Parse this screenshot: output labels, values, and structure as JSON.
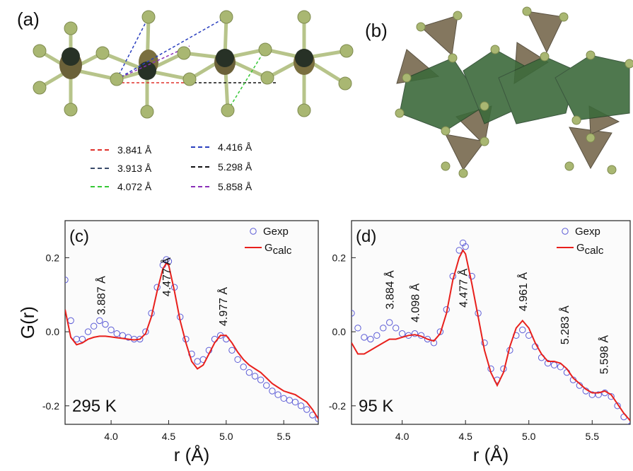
{
  "panels": {
    "a": {
      "label": "(a)",
      "legend": [
        {
          "text": "3.841 Å",
          "color": "#e0302a"
        },
        {
          "text": "3.913 Å",
          "color": "#3a4b6a"
        },
        {
          "text": "4.072 Å",
          "color": "#36c836"
        },
        {
          "text": "4.416 Å",
          "color": "#2a3fbf"
        },
        {
          "text": "5.298 Å",
          "color": "#111111"
        },
        {
          "text": "5.858 Å",
          "color": "#8a2fb8"
        }
      ]
    },
    "b": {
      "label": "(b)"
    }
  },
  "chart_data": [
    {
      "type": "line",
      "panel_label": "(c)",
      "temperature_label": "295 K",
      "xlabel": "r (Å)",
      "ylabel": "G(r)",
      "xlim": [
        3.6,
        5.8
      ],
      "ylim": [
        -0.25,
        0.3
      ],
      "xticks": [
        4.0,
        4.5,
        5.0,
        5.5
      ],
      "xtick_labels": [
        "4.0",
        "4.5",
        "5.0",
        "5.5"
      ],
      "yticks": [
        0.2,
        0.0,
        -0.2
      ],
      "ytick_labels": [
        "0.2",
        "0.0",
        "-0.2"
      ],
      "legend": {
        "exp": "Gexp",
        "calc_main": "G",
        "calc_sub": "calc"
      },
      "peak_labels": [
        {
          "text": "3.887 Å",
          "r": 3.91,
          "g": 0.03
        },
        {
          "text": "4.477 Å",
          "r": 4.48,
          "g": 0.08
        },
        {
          "text": "4.977 Å",
          "r": 4.97,
          "g": 0.0
        }
      ],
      "series": [
        {
          "name": "Gexp",
          "style": "circles",
          "color": "#5b5bd6",
          "x": [
            3.6,
            3.65,
            3.7,
            3.75,
            3.8,
            3.85,
            3.9,
            3.95,
            4.0,
            4.05,
            4.1,
            4.15,
            4.2,
            4.25,
            4.3,
            4.35,
            4.4,
            4.45,
            4.48,
            4.5,
            4.55,
            4.6,
            4.65,
            4.7,
            4.75,
            4.8,
            4.85,
            4.9,
            4.95,
            5.0,
            5.05,
            5.1,
            5.15,
            5.2,
            5.25,
            5.3,
            5.35,
            5.4,
            5.45,
            5.5,
            5.55,
            5.6,
            5.65,
            5.7,
            5.75,
            5.8
          ],
          "y": [
            0.14,
            0.03,
            -0.02,
            -0.02,
            0.0,
            0.015,
            0.03,
            0.02,
            0.005,
            -0.005,
            -0.01,
            -0.015,
            -0.02,
            -0.02,
            0.0,
            0.05,
            0.12,
            0.18,
            0.195,
            0.19,
            0.12,
            0.04,
            -0.02,
            -0.06,
            -0.08,
            -0.075,
            -0.05,
            -0.02,
            -0.01,
            -0.02,
            -0.05,
            -0.075,
            -0.095,
            -0.11,
            -0.12,
            -0.13,
            -0.145,
            -0.16,
            -0.17,
            -0.18,
            -0.185,
            -0.19,
            -0.2,
            -0.21,
            -0.225,
            -0.235
          ]
        },
        {
          "name": "G",
          "name_sub": "calc",
          "style": "line",
          "color": "#e8201c",
          "x": [
            3.6,
            3.65,
            3.7,
            3.75,
            3.8,
            3.85,
            3.9,
            3.95,
            4.0,
            4.05,
            4.1,
            4.15,
            4.2,
            4.25,
            4.3,
            4.35,
            4.4,
            4.45,
            4.48,
            4.5,
            4.55,
            4.6,
            4.65,
            4.7,
            4.75,
            4.8,
            4.85,
            4.9,
            4.95,
            5.0,
            5.05,
            5.1,
            5.15,
            5.2,
            5.25,
            5.3,
            5.35,
            5.4,
            5.45,
            5.5,
            5.55,
            5.6,
            5.65,
            5.7,
            5.75,
            5.8
          ],
          "y": [
            0.06,
            -0.015,
            -0.035,
            -0.03,
            -0.02,
            -0.015,
            -0.012,
            -0.012,
            -0.014,
            -0.016,
            -0.018,
            -0.02,
            -0.022,
            -0.02,
            -0.005,
            0.04,
            0.11,
            0.17,
            0.185,
            0.18,
            0.11,
            0.03,
            -0.03,
            -0.08,
            -0.1,
            -0.09,
            -0.06,
            -0.03,
            -0.01,
            -0.01,
            -0.03,
            -0.055,
            -0.075,
            -0.09,
            -0.1,
            -0.11,
            -0.125,
            -0.14,
            -0.15,
            -0.16,
            -0.165,
            -0.17,
            -0.18,
            -0.19,
            -0.21,
            -0.235
          ]
        }
      ]
    },
    {
      "type": "line",
      "panel_label": "(d)",
      "temperature_label": "95 K",
      "xlabel": "r (Å)",
      "ylabel": "",
      "xlim": [
        3.6,
        5.8
      ],
      "ylim": [
        -0.25,
        0.3
      ],
      "xticks": [
        4.0,
        4.5,
        5.0,
        5.5
      ],
      "xtick_labels": [
        "4.0",
        "4.5",
        "5.0",
        "5.5"
      ],
      "yticks": [
        0.2,
        0.0,
        -0.2
      ],
      "ytick_labels": [
        "0.2",
        "0.0",
        "-0.2"
      ],
      "legend": {
        "exp": "Gexp",
        "calc_main": "G",
        "calc_sub": "calc"
      },
      "peak_labels": [
        {
          "text": "3.884 Å",
          "r": 3.9,
          "g": 0.045
        },
        {
          "text": "4.098 Å",
          "r": 4.1,
          "g": 0.01
        },
        {
          "text": "4.477 Å",
          "r": 4.48,
          "g": 0.05
        },
        {
          "text": "4.961 Å",
          "r": 4.95,
          "g": 0.04
        },
        {
          "text": "5.283 Å",
          "r": 5.28,
          "g": -0.05
        },
        {
          "text": "5.598 Å",
          "r": 5.59,
          "g": -0.13
        }
      ],
      "series": [
        {
          "name": "Gexp",
          "style": "circles",
          "color": "#5b5bd6",
          "x": [
            3.6,
            3.65,
            3.7,
            3.75,
            3.8,
            3.85,
            3.9,
            3.95,
            4.0,
            4.05,
            4.1,
            4.15,
            4.2,
            4.25,
            4.3,
            4.35,
            4.4,
            4.45,
            4.48,
            4.5,
            4.55,
            4.6,
            4.65,
            4.7,
            4.75,
            4.8,
            4.85,
            4.9,
            4.95,
            5.0,
            5.05,
            5.1,
            5.15,
            5.2,
            5.25,
            5.3,
            5.35,
            5.4,
            5.45,
            5.5,
            5.55,
            5.6,
            5.65,
            5.7,
            5.75,
            5.8
          ],
          "y": [
            0.05,
            0.01,
            -0.015,
            -0.02,
            -0.01,
            0.01,
            0.025,
            0.01,
            -0.005,
            -0.01,
            -0.005,
            -0.01,
            -0.02,
            -0.03,
            0.0,
            0.06,
            0.15,
            0.22,
            0.24,
            0.23,
            0.15,
            0.05,
            -0.03,
            -0.1,
            -0.13,
            -0.1,
            -0.05,
            -0.01,
            0.005,
            -0.01,
            -0.04,
            -0.07,
            -0.085,
            -0.09,
            -0.095,
            -0.11,
            -0.13,
            -0.145,
            -0.16,
            -0.17,
            -0.17,
            -0.165,
            -0.175,
            -0.2,
            -0.23,
            -0.255
          ]
        },
        {
          "name": "G",
          "name_sub": "calc",
          "style": "line",
          "color": "#e8201c",
          "x": [
            3.6,
            3.65,
            3.7,
            3.75,
            3.8,
            3.85,
            3.9,
            3.95,
            4.0,
            4.05,
            4.1,
            4.15,
            4.2,
            4.25,
            4.3,
            4.35,
            4.4,
            4.45,
            4.48,
            4.5,
            4.55,
            4.6,
            4.65,
            4.7,
            4.75,
            4.8,
            4.85,
            4.9,
            4.95,
            5.0,
            5.05,
            5.1,
            5.15,
            5.2,
            5.25,
            5.3,
            5.35,
            5.4,
            5.45,
            5.5,
            5.55,
            5.6,
            5.65,
            5.7,
            5.75,
            5.8
          ],
          "y": [
            -0.03,
            -0.06,
            -0.06,
            -0.05,
            -0.04,
            -0.03,
            -0.02,
            -0.02,
            -0.015,
            -0.01,
            -0.008,
            -0.012,
            -0.02,
            -0.025,
            -0.005,
            0.05,
            0.14,
            0.2,
            0.22,
            0.21,
            0.13,
            0.04,
            -0.05,
            -0.11,
            -0.145,
            -0.11,
            -0.04,
            0.01,
            0.03,
            0.01,
            -0.03,
            -0.06,
            -0.08,
            -0.08,
            -0.085,
            -0.1,
            -0.125,
            -0.14,
            -0.155,
            -0.165,
            -0.165,
            -0.16,
            -0.17,
            -0.195,
            -0.22,
            -0.24
          ]
        }
      ]
    }
  ]
}
